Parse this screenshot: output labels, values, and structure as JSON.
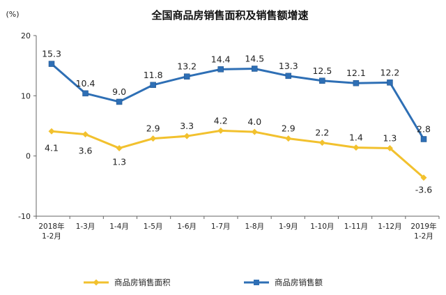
{
  "chart_data": {
    "type": "line",
    "title": "全国商品房销售面积及销售额增速",
    "ylabel": "(%)",
    "xlabel": "",
    "ylim": [
      -10,
      20
    ],
    "yticks": [
      20,
      10,
      0,
      -10
    ],
    "categories": [
      [
        "2018年",
        "1-2月"
      ],
      [
        "1-3月"
      ],
      [
        "1-4月"
      ],
      [
        "1-5月"
      ],
      [
        "1-6月"
      ],
      [
        "1-7月"
      ],
      [
        "1-8月"
      ],
      [
        "1-9月"
      ],
      [
        "1-10月"
      ],
      [
        "1-11月"
      ],
      [
        "1-12月"
      ],
      [
        "2019年",
        "1-2月"
      ]
    ],
    "series": [
      {
        "name": "商品房销售额",
        "color": "#2e6fb5",
        "marker": "square",
        "values": [
          15.3,
          10.4,
          9.0,
          11.8,
          13.2,
          14.4,
          14.5,
          13.3,
          12.5,
          12.1,
          12.2,
          2.8
        ],
        "labels": [
          "15.3",
          "10.4",
          "9.0",
          "11.8",
          "13.2",
          "14.4",
          "14.5",
          "13.3",
          "12.5",
          "12.1",
          "12.2",
          "2.8"
        ]
      },
      {
        "name": "商品房销售面积",
        "color": "#f2c12e",
        "marker": "diamond",
        "values": [
          4.1,
          3.6,
          1.3,
          2.9,
          3.3,
          4.2,
          4.0,
          2.9,
          2.2,
          1.4,
          1.3,
          -3.6
        ],
        "labels": [
          "4.1",
          "3.6",
          "1.3",
          "2.9",
          "3.3",
          "4.2",
          "4.0",
          "2.9",
          "2.2",
          "1.4",
          "1.3",
          "-3.6"
        ]
      }
    ],
    "grid": false,
    "legend_position": "bottom",
    "legend_order": [
      "商品房销售面积",
      "商品房销售额"
    ]
  }
}
